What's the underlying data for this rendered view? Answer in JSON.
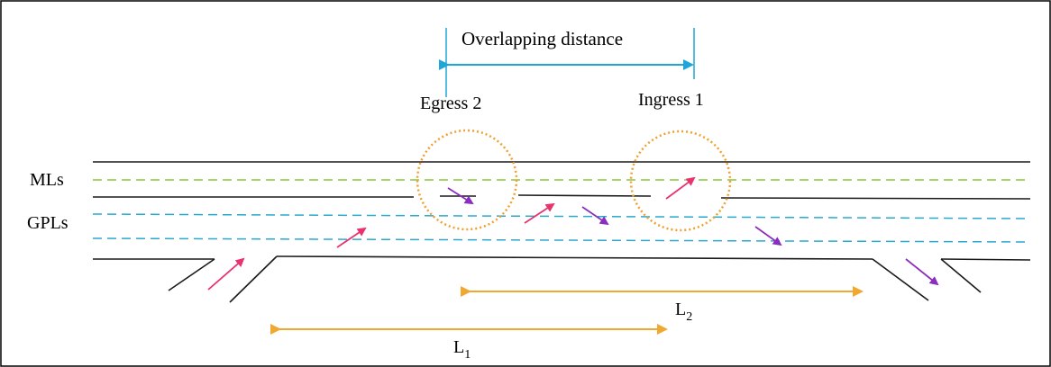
{
  "labels": {
    "overlapping": "Overlapping distance",
    "egress": "Egress 2",
    "ingress": "Ingress 1",
    "mls": "MLs",
    "gpls": "GPLs",
    "l1_base": "L",
    "l1_sub": "1",
    "l2_base": "L",
    "l2_sub": "2"
  },
  "colors": {
    "frame": "#000000",
    "road_line": "#1a1a1a",
    "managed_lane_dash": "#8cc63f",
    "general_lane_dash": "#29a9cf",
    "overlap_arrow": "#1ea7d6",
    "length_arrow": "#f0a830",
    "zone_circle": "#f0a030",
    "merge_arrow_pink": "#e8336e",
    "diverge_arrow_purple": "#8a2ec0"
  },
  "icons": {
    "merge_arrow": "pink-arrow-icon",
    "diverge_arrow": "purple-arrow-icon"
  }
}
